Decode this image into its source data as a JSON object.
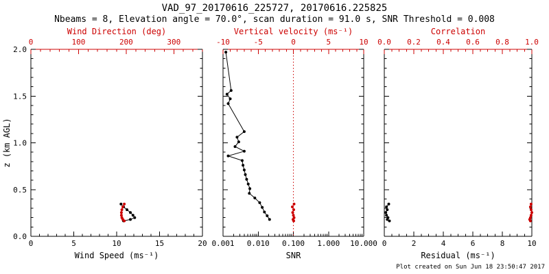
{
  "header": {
    "title": "VAD_97_20170616_225727, 20170616.225825",
    "subtitle": "Nbeams = 8, Elevation angle = 70.0°, scan duration = 91.0 s, SNR Threshold = 0.008"
  },
  "footer": {
    "created": "Plot created on Sun Jun 18 23:50:47 2017"
  },
  "colors": {
    "axis_black": "#000000",
    "axis_red": "#cc0000",
    "background": "#ffffff"
  },
  "chart_data": [
    {
      "type": "scatter",
      "name": "wind-panel",
      "ylabel": "z (km AGL)",
      "ylim": [
        0,
        2
      ],
      "yticks": [
        0,
        0.5,
        1,
        1.5,
        2
      ],
      "ytick_labels": [
        "0.0",
        "0.5",
        "1.0",
        "1.5",
        "2.0"
      ],
      "y_minor": 0.1,
      "show_ytick_labels": true,
      "bottom_axis": {
        "label": "Wind Speed (ms⁻¹)",
        "scale": "linear",
        "lim": [
          0,
          20
        ],
        "ticks": [
          0,
          5,
          10,
          15,
          20
        ],
        "tick_labels": [
          "0",
          "5",
          "10",
          "15",
          "20"
        ],
        "minor": 1,
        "color": "#000000"
      },
      "top_axis": {
        "label": "Wind Direction (deg)",
        "scale": "linear",
        "lim": [
          0,
          360
        ],
        "ticks": [
          0,
          100,
          200,
          300
        ],
        "tick_labels": [
          "0",
          "100",
          "200",
          "300"
        ],
        "minor": 20,
        "color": "#cc0000"
      },
      "series": [
        {
          "name": "wind-speed",
          "axis": "bottom",
          "color": "#000000",
          "points": [
            [
              10.5,
              0.345
            ],
            [
              10.8,
              0.315
            ],
            [
              11.2,
              0.285
            ],
            [
              11.6,
              0.255
            ],
            [
              11.9,
              0.225
            ],
            [
              12.1,
              0.2
            ],
            [
              11.6,
              0.18
            ],
            [
              10.8,
              0.165
            ]
          ]
        },
        {
          "name": "wind-direction",
          "axis": "top",
          "color": "#cc0000",
          "points": [
            [
              196,
              0.345
            ],
            [
              193,
              0.315
            ],
            [
              191,
              0.285
            ],
            [
              190,
              0.255
            ],
            [
              190,
              0.225
            ],
            [
              191,
              0.2
            ],
            [
              193,
              0.18
            ],
            [
              196,
              0.165
            ]
          ]
        }
      ]
    },
    {
      "type": "scatter",
      "name": "snr-panel",
      "ylabel": "",
      "ylim": [
        0,
        2
      ],
      "yticks": [
        0,
        0.5,
        1,
        1.5,
        2
      ],
      "ytick_labels": [
        "0.0",
        "0.5",
        "1.0",
        "1.5",
        "2.0"
      ],
      "y_minor": 0.1,
      "show_ytick_labels": false,
      "bottom_axis": {
        "label": "SNR",
        "scale": "log",
        "lim": [
          0.001,
          10
        ],
        "ticks": [
          0.001,
          0.01,
          0.1,
          1,
          10
        ],
        "tick_labels": [
          "0.001",
          "0.010",
          "0.100",
          "1.000",
          "10.000"
        ],
        "color": "#000000"
      },
      "top_axis": {
        "label": "Vertical velocity (ms⁻¹)",
        "scale": "linear",
        "lim": [
          -10,
          10
        ],
        "ticks": [
          -10,
          -5,
          0,
          5,
          10
        ],
        "tick_labels": [
          "-10",
          "-5",
          "0",
          "5",
          "10"
        ],
        "minor": 1,
        "color": "#cc0000"
      },
      "reference_line": {
        "axis": "top",
        "value": 0,
        "color": "#cc0000",
        "style": "dotted"
      },
      "series": [
        {
          "name": "snr",
          "axis": "bottom",
          "color": "#000000",
          "points": [
            [
              0.0012,
              1.97
            ],
            [
              0.0017,
              1.56
            ],
            [
              0.0013,
              1.52
            ],
            [
              0.0016,
              1.47
            ],
            [
              0.0014,
              1.42
            ],
            [
              0.004,
              1.12
            ],
            [
              0.0025,
              1.06
            ],
            [
              0.0028,
              1.01
            ],
            [
              0.0022,
              0.96
            ],
            [
              0.004,
              0.91
            ],
            [
              0.0014,
              0.86
            ],
            [
              0.0035,
              0.81
            ],
            [
              0.0037,
              0.76
            ],
            [
              0.004,
              0.71
            ],
            [
              0.0043,
              0.66
            ],
            [
              0.0047,
              0.61
            ],
            [
              0.0052,
              0.56
            ],
            [
              0.0058,
              0.51
            ],
            [
              0.0056,
              0.46
            ],
            [
              0.008,
              0.41
            ],
            [
              0.011,
              0.36
            ],
            [
              0.013,
              0.31
            ],
            [
              0.015,
              0.26
            ],
            [
              0.018,
              0.22
            ],
            [
              0.021,
              0.18
            ]
          ]
        },
        {
          "name": "vertical-velocity",
          "axis": "top",
          "color": "#cc0000",
          "points": [
            [
              0.1,
              0.345
            ],
            [
              -0.15,
              0.315
            ],
            [
              0.05,
              0.285
            ],
            [
              -0.1,
              0.255
            ],
            [
              0,
              0.225
            ],
            [
              0.1,
              0.2
            ],
            [
              -0.05,
              0.18
            ],
            [
              0.05,
              0.165
            ]
          ]
        }
      ]
    },
    {
      "type": "scatter",
      "name": "residual-panel",
      "ylabel": "",
      "ylim": [
        0,
        2
      ],
      "yticks": [
        0,
        0.5,
        1,
        1.5,
        2
      ],
      "ytick_labels": [
        "0.0",
        "0.5",
        "1.0",
        "1.5",
        "2.0"
      ],
      "y_minor": 0.1,
      "show_ytick_labels": false,
      "bottom_axis": {
        "label": "Residual (ms⁻¹)",
        "scale": "linear",
        "lim": [
          0,
          10
        ],
        "ticks": [
          0,
          2,
          4,
          6,
          8,
          10
        ],
        "tick_labels": [
          "0",
          "2",
          "4",
          "6",
          "8",
          "10"
        ],
        "minor": 0.5,
        "color": "#000000"
      },
      "top_axis": {
        "label": "Correlation",
        "scale": "linear",
        "lim": [
          0,
          1
        ],
        "ticks": [
          0,
          0.2,
          0.4,
          0.6,
          0.8,
          1
        ],
        "tick_labels": [
          "0.0",
          "0.2",
          "0.4",
          "0.6",
          "0.8",
          "1.0"
        ],
        "minor": 0.05,
        "color": "#cc0000"
      },
      "series": [
        {
          "name": "residual",
          "axis": "bottom",
          "color": "#000000",
          "points": [
            [
              0.3,
              0.345
            ],
            [
              0.15,
              0.315
            ],
            [
              0.2,
              0.285
            ],
            [
              0.1,
              0.255
            ],
            [
              0.15,
              0.225
            ],
            [
              0.25,
              0.2
            ],
            [
              0.2,
              0.18
            ],
            [
              0.35,
              0.165
            ]
          ]
        },
        {
          "name": "correlation",
          "axis": "top",
          "color": "#cc0000",
          "points": [
            [
              0.995,
              0.345
            ],
            [
              0.99,
              0.315
            ],
            [
              0.995,
              0.285
            ],
            [
              1.0,
              0.255
            ],
            [
              0.995,
              0.225
            ],
            [
              0.99,
              0.2
            ],
            [
              0.985,
              0.18
            ],
            [
              0.99,
              0.165
            ]
          ]
        }
      ]
    }
  ]
}
